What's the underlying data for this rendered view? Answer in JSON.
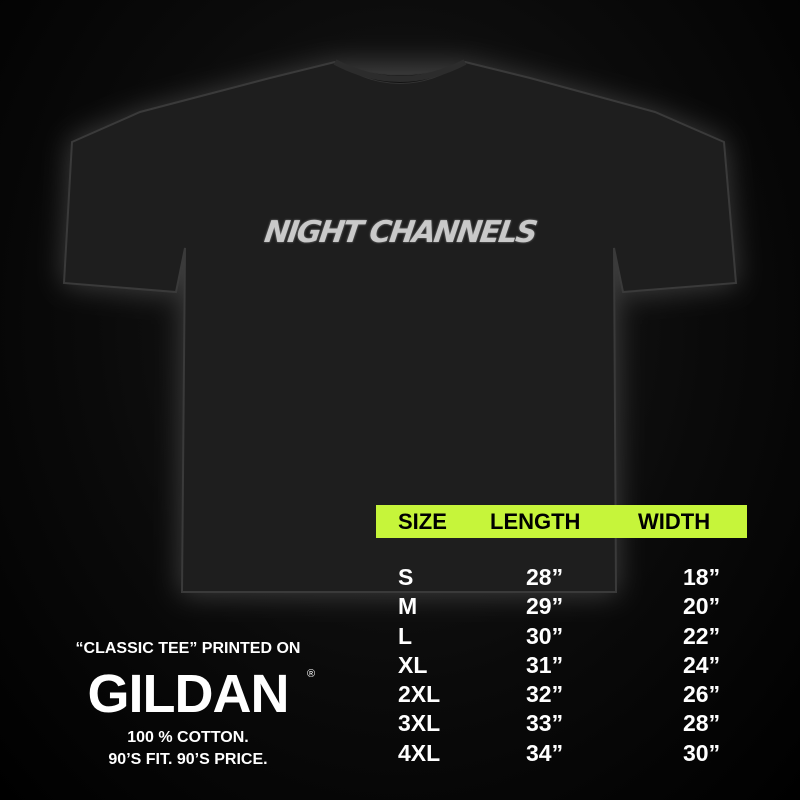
{
  "shirt": {
    "print_text": "NIGHT CHANNELS",
    "color": "#1e1e1e",
    "print_color": "#c9c9c9"
  },
  "size_chart": {
    "header_color": "#c6f53a",
    "headers": [
      "SIZE",
      "LENGTH",
      "WIDTH"
    ],
    "rows": [
      {
        "size": "S",
        "length": "28”",
        "width": "18”"
      },
      {
        "size": "M",
        "length": "29”",
        "width": "20”"
      },
      {
        "size": "L",
        "length": "30”",
        "width": "22”"
      },
      {
        "size": "XL",
        "length": "31”",
        "width": "24”"
      },
      {
        "size": "2XL",
        "length": "32”",
        "width": "26”"
      },
      {
        "size": "3XL",
        "length": "33”",
        "width": "28”"
      },
      {
        "size": "4XL",
        "length": "34”",
        "width": "30”"
      }
    ]
  },
  "promo": {
    "tagline": "“CLASSIC TEE” PRINTED ON",
    "brand_logo": "GILDAN",
    "registered": "®",
    "line1": "100 % COTTON.",
    "line2": "90’S FIT. 90’S PRICE."
  }
}
